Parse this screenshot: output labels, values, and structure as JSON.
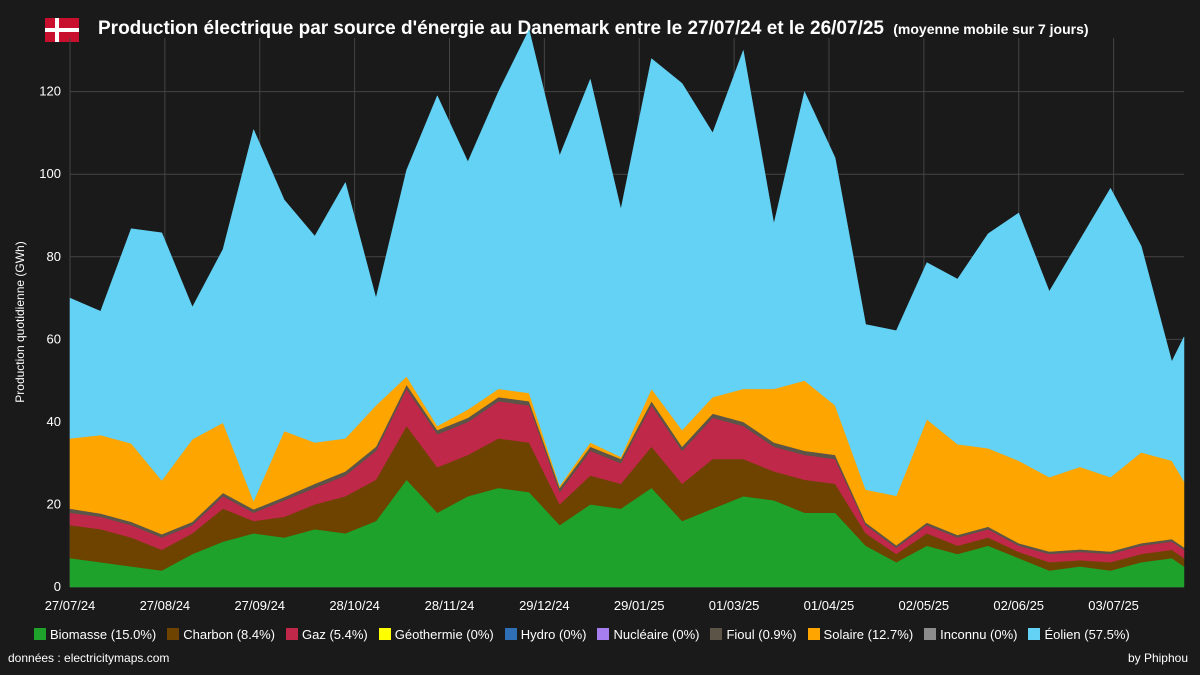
{
  "header": {
    "title": "Production électrique par source d'énergie au Danemark entre le 27/07/24 et le 26/07/25",
    "subtitle": "(moyenne mobile sur 7 jours)"
  },
  "footer": {
    "source": "données : electricitymaps.com",
    "author": "by Phiphou"
  },
  "colors": {
    "background": "#1a1a1a",
    "grid": "#444444",
    "flag_red": "#c8102e",
    "flag_white": "#ffffff"
  },
  "chart_data": {
    "type": "area",
    "stacked": true,
    "title": "Production électrique par source d'énergie au Danemark entre le 27/07/24 et le 26/07/25",
    "subtitle": "(moyenne mobile sur 7 jours)",
    "ylabel": "Production quotidienne (GWh)",
    "ylim": [
      0,
      133
    ],
    "yticks": [
      0,
      20,
      40,
      60,
      80,
      100,
      120
    ],
    "xlim": [
      "27/07/24",
      "26/07/25"
    ],
    "xticks": [
      "27/07/24",
      "27/08/24",
      "27/09/24",
      "28/10/24",
      "28/11/24",
      "29/12/24",
      "29/01/25",
      "01/03/25",
      "01/04/25",
      "02/05/25",
      "02/06/25",
      "03/07/25"
    ],
    "grid": true,
    "legend_position": "bottom",
    "x": [
      "27/07/24",
      "06/08/24",
      "16/08/24",
      "26/08/24",
      "05/09/24",
      "15/09/24",
      "25/09/24",
      "05/10/24",
      "15/10/24",
      "25/10/24",
      "04/11/24",
      "14/11/24",
      "24/11/24",
      "04/12/24",
      "14/12/24",
      "24/12/24",
      "03/01/25",
      "13/01/25",
      "23/01/25",
      "02/02/25",
      "12/02/25",
      "22/02/25",
      "04/03/25",
      "14/03/25",
      "24/03/25",
      "03/04/25",
      "13/04/25",
      "23/04/25",
      "03/05/25",
      "13/05/25",
      "23/05/25",
      "02/06/25",
      "12/06/25",
      "22/06/25",
      "02/07/25",
      "12/07/25",
      "22/07/25",
      "26/07/25"
    ],
    "series": [
      {
        "name": "Biomasse (15.0%)",
        "color": "#1ea22c",
        "values": [
          7,
          6,
          5,
          4,
          8,
          11,
          13,
          12,
          14,
          13,
          16,
          26,
          18,
          22,
          24,
          23,
          15,
          20,
          19,
          24,
          16,
          19,
          22,
          21,
          18,
          18,
          10,
          6,
          10,
          8,
          10,
          7,
          4,
          5,
          4,
          6,
          7,
          5
        ]
      },
      {
        "name": "Charbon (8.4%)",
        "color": "#6e4300",
        "values": [
          8,
          8,
          7,
          5,
          5,
          8,
          3,
          5,
          6,
          9,
          10,
          13,
          11,
          10,
          12,
          12,
          5,
          7,
          6,
          10,
          9,
          12,
          9,
          7,
          8,
          7,
          3,
          2,
          3,
          2,
          2,
          1.5,
          2,
          1.5,
          2,
          2,
          2,
          2
        ]
      },
      {
        "name": "Gaz (5.4%)",
        "color": "#c0284a",
        "values": [
          3,
          3,
          3,
          3,
          2,
          3,
          2,
          4,
          4,
          5,
          7,
          9,
          8,
          8,
          9,
          9,
          3,
          6,
          5,
          10,
          8,
          10,
          8,
          6,
          6,
          6,
          2,
          1.5,
          2,
          2,
          2,
          1.5,
          2,
          2,
          2,
          2,
          2,
          2
        ]
      },
      {
        "name": "Géothermie (0%)",
        "color": "#ffff00",
        "values": [
          0,
          0,
          0,
          0,
          0,
          0,
          0,
          0,
          0,
          0,
          0,
          0,
          0,
          0,
          0,
          0,
          0,
          0,
          0,
          0,
          0,
          0,
          0,
          0,
          0,
          0,
          0,
          0,
          0,
          0,
          0,
          0,
          0,
          0,
          0,
          0,
          0,
          0
        ]
      },
      {
        "name": "Hydro (0%)",
        "color": "#2e6fb6",
        "values": [
          0,
          0,
          0,
          0,
          0,
          0,
          0,
          0,
          0,
          0,
          0,
          0,
          0,
          0,
          0,
          0,
          0,
          0,
          0,
          0,
          0,
          0,
          0,
          0,
          0,
          0,
          0,
          0,
          0,
          0,
          0,
          0,
          0,
          0,
          0,
          0,
          0,
          0
        ]
      },
      {
        "name": "Nucléaire (0%)",
        "color": "#a77ef0",
        "values": [
          0,
          0,
          0,
          0,
          0,
          0,
          0,
          0,
          0,
          0,
          0,
          0,
          0,
          0,
          0,
          0,
          0,
          0,
          0,
          0,
          0,
          0,
          0,
          0,
          0,
          0,
          0,
          0,
          0,
          0,
          0,
          0,
          0,
          0,
          0,
          0,
          0,
          0
        ]
      },
      {
        "name": "Fioul (0.9%)",
        "color": "#5c5446",
        "values": [
          1,
          0.8,
          0.8,
          0.8,
          0.8,
          0.8,
          0.8,
          0.8,
          1,
          1,
          1,
          1,
          1,
          1,
          1,
          1,
          1,
          1,
          1,
          1,
          1,
          1,
          1,
          1,
          1,
          1,
          0.6,
          0.6,
          0.6,
          0.6,
          0.6,
          0.6,
          0.6,
          0.6,
          0.6,
          0.6,
          0.6,
          0.6
        ]
      },
      {
        "name": "Solaire (12.7%)",
        "color": "#ffa500",
        "values": [
          17,
          19,
          19,
          13,
          20,
          17,
          2,
          16,
          10,
          8,
          10,
          2,
          1,
          2,
          2,
          2,
          0.5,
          1,
          0.5,
          3,
          4,
          4,
          8,
          13,
          17,
          12,
          8,
          12,
          25,
          22,
          19,
          20,
          18,
          20,
          18,
          22,
          19,
          16
        ]
      },
      {
        "name": "Inconnu (0%)",
        "color": "#8c8c8c",
        "values": [
          0,
          0,
          0,
          0,
          0,
          0,
          0,
          0,
          0,
          0,
          0,
          0,
          0,
          0,
          0,
          0,
          0,
          0,
          0,
          0,
          0,
          0,
          0,
          0,
          0,
          0,
          0,
          0,
          0,
          0,
          0,
          0,
          0,
          0,
          0,
          0,
          0,
          0
        ]
      },
      {
        "name": "Éolien (57.5%)",
        "color": "#64d2f4",
        "values": [
          34,
          30,
          52,
          60,
          32,
          42,
          90,
          56,
          50,
          62,
          26,
          50,
          80,
          60,
          72,
          88,
          80,
          88,
          60,
          80,
          84,
          64,
          82,
          40,
          70,
          60,
          40,
          40,
          38,
          40,
          52,
          60,
          45,
          55,
          70,
          50,
          24,
          35
        ]
      }
    ]
  }
}
